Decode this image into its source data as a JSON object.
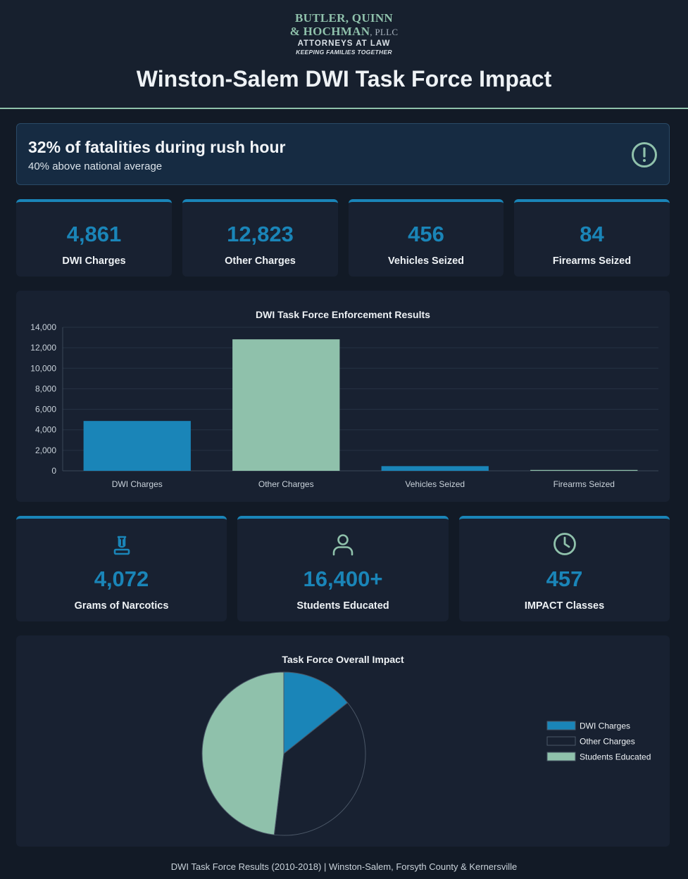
{
  "colors": {
    "accent": "#1a85b8",
    "mint": "#8fc1ab",
    "background": "#121a26",
    "panel": "#182131"
  },
  "logo": {
    "line1": "BUTLER, QUINN",
    "line2": "& HOCHMAN",
    "line2_suffix": ", PLLC",
    "line3": "ATTORNEYS AT LAW",
    "line4": "KEEPING FAMILIES TOGETHER"
  },
  "page_title": "Winston-Salem DWI Task Force Impact",
  "alert": {
    "title": "32% of fatalities during rush hour",
    "subtitle": "40% above national average",
    "icon": "alert-circle-icon"
  },
  "stats_top": [
    {
      "value": "4,861",
      "label": "DWI Charges"
    },
    {
      "value": "12,823",
      "label": "Other Charges"
    },
    {
      "value": "456",
      "label": "Vehicles Seized"
    },
    {
      "value": "84",
      "label": "Firearms Seized"
    }
  ],
  "stats_bottom": [
    {
      "value": "4,072",
      "label": "Grams of Narcotics",
      "icon": "flask-icon"
    },
    {
      "value": "16,400+",
      "label": "Students Educated",
      "icon": "user-icon"
    },
    {
      "value": "457",
      "label": "IMPACT Classes",
      "icon": "clock-icon"
    }
  ],
  "chart_data": [
    {
      "type": "bar",
      "title": "DWI Task Force Enforcement Results",
      "categories": [
        "DWI Charges",
        "Other Charges",
        "Vehicles Seized",
        "Firearms Seized"
      ],
      "values": [
        4861,
        12823,
        456,
        84
      ],
      "colors": [
        "#1a85b8",
        "#8fc1ab",
        "#1a85b8",
        "#8fc1ab"
      ],
      "ylim": [
        0,
        14000
      ],
      "yticks": [
        0,
        2000,
        4000,
        6000,
        8000,
        10000,
        12000,
        14000
      ],
      "ytick_labels": [
        "0",
        "2,000",
        "4,000",
        "6,000",
        "8,000",
        "10,000",
        "12,000",
        "14,000"
      ],
      "grid": true,
      "xlabel": "",
      "ylabel": ""
    },
    {
      "type": "pie",
      "title": "Task Force Overall Impact",
      "labels": [
        "DWI Charges",
        "Other Charges",
        "Students Educated"
      ],
      "values": [
        4861,
        12823,
        16400
      ],
      "colors": [
        "#1a85b8",
        "#182131",
        "#8fc1ab"
      ],
      "legend": "right"
    }
  ],
  "footer": "DWI Task Force Results (2010-2018) | Winston-Salem, Forsyth County & Kernersville"
}
